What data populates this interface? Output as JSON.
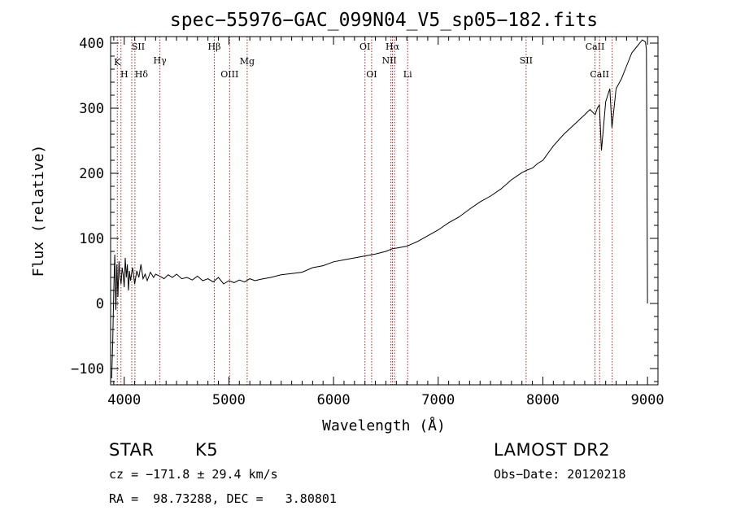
{
  "chart_data": {
    "type": "line",
    "title": "spec−55976−GAC_099N04_V5_sp05−182.fits",
    "xlabel": "Wavelength (Å)",
    "ylabel": "Flux (relative)",
    "xlim": [
      3870,
      9100
    ],
    "ylim": [
      -125,
      410
    ],
    "xticks": [
      4000,
      5000,
      6000,
      7000,
      8000,
      9000
    ],
    "xtick_labels": [
      "4000",
      "5000",
      "6000",
      "7000",
      "8000",
      "9000"
    ],
    "yticks": [
      -100,
      0,
      100,
      200,
      300,
      400
    ],
    "ytick_labels": [
      "−100",
      "0",
      "100",
      "200",
      "300",
      "400"
    ],
    "grid": false,
    "series": [
      {
        "x": [
          3880,
          3890,
          3900,
          3910,
          3920,
          3930,
          3940,
          3950,
          3960,
          3970,
          3980,
          3990,
          4000,
          4010,
          4020,
          4030,
          4040,
          4050,
          4060,
          4080,
          4100,
          4120,
          4140,
          4160,
          4180,
          4200,
          4220,
          4250,
          4280,
          4300,
          4340,
          4380,
          4420,
          4460,
          4500,
          4550,
          4600,
          4650,
          4700,
          4750,
          4800,
          4850,
          4900,
          4950,
          5000,
          5050,
          5100,
          5150,
          5200,
          5250,
          5300,
          5400,
          5500,
          5600,
          5700,
          5800,
          5900,
          6000,
          6100,
          6200,
          6300,
          6400,
          6500,
          6560,
          6600,
          6700,
          6800,
          6900,
          7000,
          7100,
          7200,
          7300,
          7400,
          7500,
          7600,
          7700,
          7800,
          7850,
          7900,
          7950,
          8000,
          8100,
          8200,
          8300,
          8400,
          8450,
          8500,
          8520,
          8540,
          8560,
          8600,
          8640,
          8660,
          8700,
          8750,
          8800,
          8850,
          8900,
          8950,
          8980,
          8990,
          9000
        ],
        "y": [
          -115,
          -60,
          20,
          75,
          -10,
          60,
          10,
          65,
          40,
          30,
          55,
          45,
          25,
          70,
          40,
          60,
          20,
          50,
          35,
          55,
          30,
          50,
          40,
          60,
          38,
          45,
          35,
          48,
          40,
          45,
          42,
          38,
          44,
          40,
          45,
          38,
          40,
          36,
          42,
          35,
          38,
          33,
          40,
          30,
          35,
          32,
          36,
          33,
          38,
          35,
          37,
          40,
          44,
          46,
          48,
          55,
          58,
          64,
          67,
          70,
          73,
          76,
          80,
          84,
          85,
          88,
          95,
          104,
          113,
          124,
          133,
          145,
          156,
          165,
          176,
          190,
          201,
          205,
          208,
          215,
          220,
          242,
          260,
          275,
          290,
          298,
          290,
          300,
          305,
          235,
          310,
          330,
          270,
          330,
          345,
          365,
          385,
          395,
          405,
          402,
          390,
          0
        ]
      }
    ],
    "lines": [
      {
        "label": "K",
        "wavelength": 3934
      },
      {
        "label": "H",
        "wavelength": 3969
      },
      {
        "label": "SII",
        "wavelength": 4072
      },
      {
        "label": "Hδ",
        "wavelength": 4102
      },
      {
        "label": "Hγ",
        "wavelength": 4341
      },
      {
        "label": "Hβ",
        "wavelength": 4861
      },
      {
        "label": "OIII",
        "wavelength": 5007
      },
      {
        "label": "Mg",
        "wavelength": 5175
      },
      {
        "label": "OI",
        "wavelength": 6300
      },
      {
        "label": "OI",
        "wavelength": 6364
      },
      {
        "label": "NII",
        "wavelength": 6548
      },
      {
        "label": "Hα",
        "wavelength": 6563
      },
      {
        "label": "NII",
        "wavelength": 6583
      },
      {
        "label": "Li",
        "wavelength": 6708
      },
      {
        "label": "SII",
        "wavelength": 7840
      },
      {
        "label": "CaII",
        "wavelength": 8498
      },
      {
        "label": "CaII",
        "wavelength": 8542
      },
      {
        "label": "CaII",
        "wavelength": 8662
      }
    ]
  },
  "info": {
    "object_class": "STAR",
    "subclass": "K5",
    "survey": "LAMOST DR2",
    "cz_line": "cz = −171.8 ± 29.4 km/s",
    "obs_date": "Obs−Date: 20120218",
    "radec_line": "RA =  98.73288, DEC =   3.80801"
  },
  "colors": {
    "spectrum": "#000000",
    "line_markers": "#b22222",
    "axes": "#000000",
    "background": "#ffffff"
  }
}
